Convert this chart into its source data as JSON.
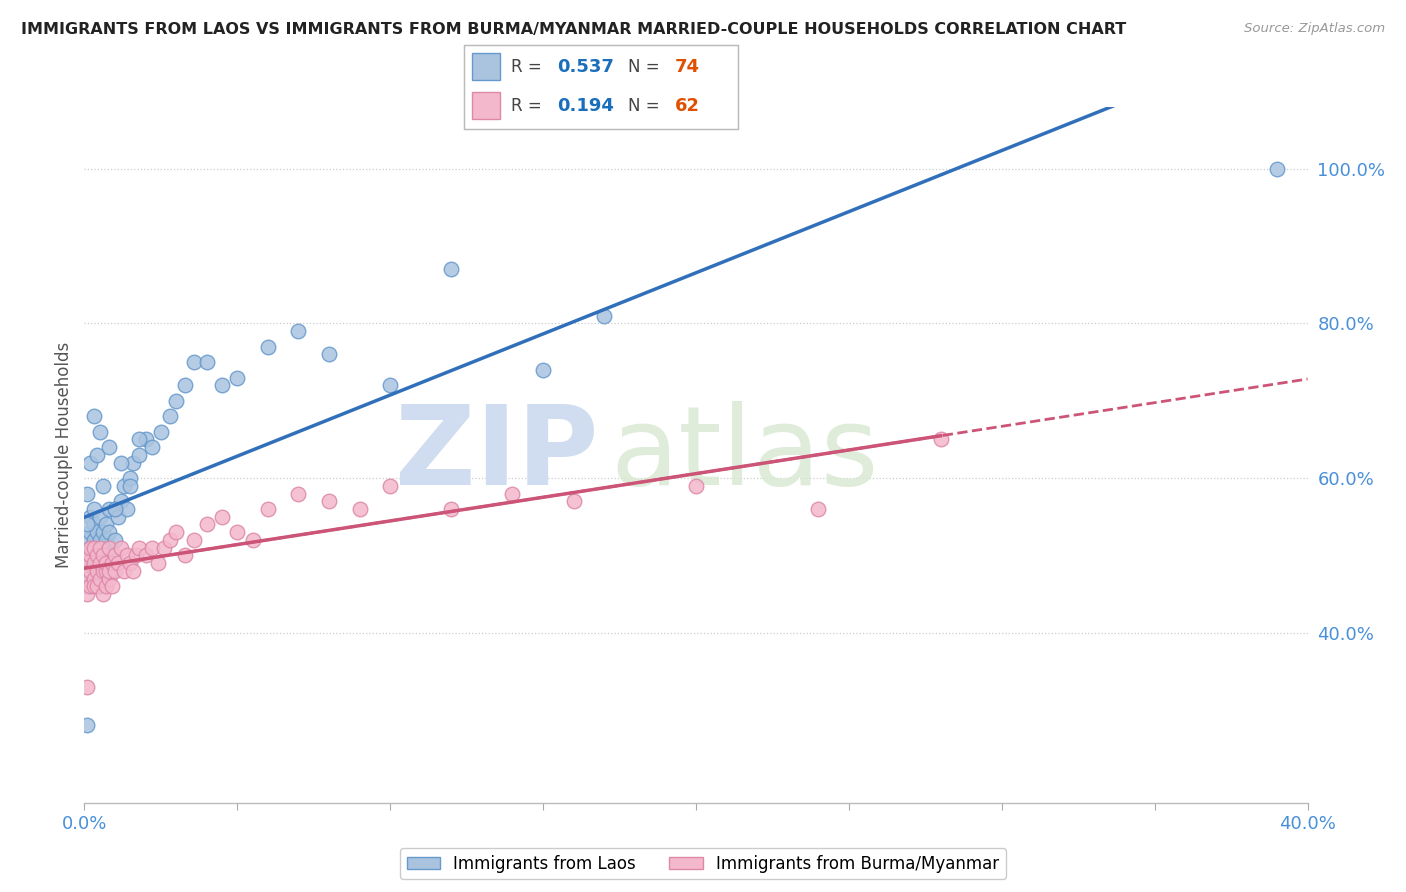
{
  "title": "IMMIGRANTS FROM LAOS VS IMMIGRANTS FROM BURMA/MYANMAR MARRIED-COUPLE HOUSEHOLDS CORRELATION CHART",
  "source": "Source: ZipAtlas.com",
  "ylabel": "Married-couple Households",
  "xlim": [
    0.0,
    0.4
  ],
  "ylim": [
    0.18,
    1.08
  ],
  "x_ticks": [
    0.0,
    0.05,
    0.1,
    0.15,
    0.2,
    0.25,
    0.3,
    0.35,
    0.4
  ],
  "y_ticks_right": [
    0.4,
    0.6,
    0.8,
    1.0
  ],
  "y_tick_labels_right": [
    "40.0%",
    "60.0%",
    "80.0%",
    "100.0%"
  ],
  "laos_color": "#aac4e0",
  "laos_edge_color": "#6699cc",
  "burma_color": "#f4b8cc",
  "burma_edge_color": "#dd88a8",
  "laos_R": 0.537,
  "laos_N": 74,
  "burma_R": 0.194,
  "burma_N": 62,
  "laos_line_color": "#3070bb",
  "burma_line_color": "#cc5577",
  "watermark_zip": "ZIP",
  "watermark_atlas": "atlas",
  "watermark_color": "#d0ddf0",
  "legend_R_color": "#1a6fbd",
  "legend_N_color": "#e05000",
  "background_color": "#ffffff",
  "laos_x": [
    0.001,
    0.001,
    0.001,
    0.001,
    0.001,
    0.002,
    0.002,
    0.002,
    0.002,
    0.002,
    0.002,
    0.003,
    0.003,
    0.003,
    0.003,
    0.003,
    0.004,
    0.004,
    0.004,
    0.004,
    0.005,
    0.005,
    0.005,
    0.005,
    0.006,
    0.006,
    0.006,
    0.007,
    0.007,
    0.007,
    0.008,
    0.008,
    0.009,
    0.009,
    0.01,
    0.01,
    0.011,
    0.012,
    0.013,
    0.014,
    0.015,
    0.016,
    0.018,
    0.02,
    0.022,
    0.025,
    0.028,
    0.03,
    0.033,
    0.036,
    0.04,
    0.045,
    0.05,
    0.06,
    0.07,
    0.08,
    0.1,
    0.12,
    0.15,
    0.17,
    0.001,
    0.001,
    0.002,
    0.003,
    0.004,
    0.005,
    0.006,
    0.008,
    0.01,
    0.012,
    0.015,
    0.018,
    0.39,
    0.001
  ],
  "laos_y": [
    0.5,
    0.49,
    0.52,
    0.47,
    0.46,
    0.51,
    0.48,
    0.55,
    0.46,
    0.53,
    0.49,
    0.54,
    0.5,
    0.47,
    0.56,
    0.52,
    0.53,
    0.49,
    0.51,
    0.47,
    0.55,
    0.52,
    0.49,
    0.46,
    0.53,
    0.51,
    0.48,
    0.54,
    0.5,
    0.52,
    0.56,
    0.53,
    0.5,
    0.48,
    0.56,
    0.52,
    0.55,
    0.57,
    0.59,
    0.56,
    0.6,
    0.62,
    0.63,
    0.65,
    0.64,
    0.66,
    0.68,
    0.7,
    0.72,
    0.75,
    0.75,
    0.72,
    0.73,
    0.77,
    0.79,
    0.76,
    0.72,
    0.87,
    0.74,
    0.81,
    0.58,
    0.54,
    0.62,
    0.68,
    0.63,
    0.66,
    0.59,
    0.64,
    0.56,
    0.62,
    0.59,
    0.65,
    1.0,
    0.28
  ],
  "burma_x": [
    0.001,
    0.001,
    0.001,
    0.002,
    0.002,
    0.002,
    0.002,
    0.003,
    0.003,
    0.003,
    0.003,
    0.004,
    0.004,
    0.004,
    0.005,
    0.005,
    0.005,
    0.006,
    0.006,
    0.006,
    0.007,
    0.007,
    0.007,
    0.008,
    0.008,
    0.008,
    0.009,
    0.009,
    0.01,
    0.01,
    0.011,
    0.012,
    0.013,
    0.014,
    0.015,
    0.016,
    0.017,
    0.018,
    0.02,
    0.022,
    0.024,
    0.026,
    0.028,
    0.03,
    0.033,
    0.036,
    0.04,
    0.045,
    0.05,
    0.055,
    0.06,
    0.07,
    0.08,
    0.09,
    0.1,
    0.12,
    0.14,
    0.16,
    0.2,
    0.24,
    0.001,
    0.28
  ],
  "burma_y": [
    0.47,
    0.49,
    0.45,
    0.48,
    0.5,
    0.46,
    0.51,
    0.47,
    0.49,
    0.46,
    0.51,
    0.48,
    0.5,
    0.46,
    0.49,
    0.47,
    0.51,
    0.48,
    0.45,
    0.5,
    0.48,
    0.46,
    0.49,
    0.47,
    0.51,
    0.48,
    0.49,
    0.46,
    0.48,
    0.5,
    0.49,
    0.51,
    0.48,
    0.5,
    0.49,
    0.48,
    0.5,
    0.51,
    0.5,
    0.51,
    0.49,
    0.51,
    0.52,
    0.53,
    0.5,
    0.52,
    0.54,
    0.55,
    0.53,
    0.52,
    0.56,
    0.58,
    0.57,
    0.56,
    0.59,
    0.56,
    0.58,
    0.57,
    0.59,
    0.56,
    0.33,
    0.65
  ]
}
